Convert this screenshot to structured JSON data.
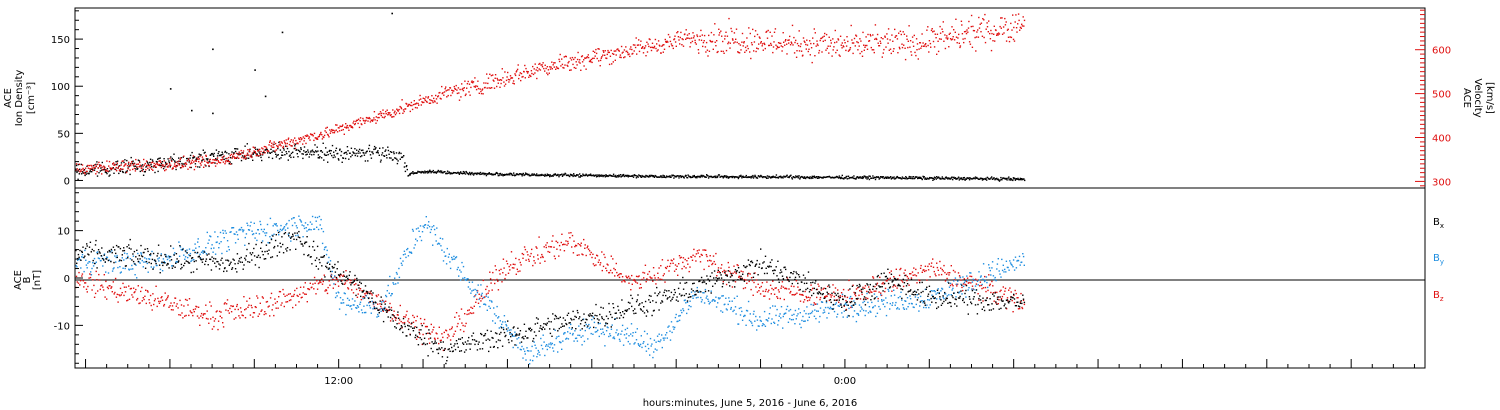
{
  "chart_data": [
    {
      "type": "scatter",
      "ylabel_left": [
        "ACE",
        "Ion Density",
        "[cm⁻³]"
      ],
      "ylabel_right": [
        "ACE",
        "Velocity",
        "[km/s]"
      ],
      "x_range_hours": [
        -12.5,
        51.5
      ],
      "ylim_left": [
        -8,
        183
      ],
      "ylim_right": [
        285,
        695
      ],
      "left_ticks": [
        "0",
        "50",
        "100",
        "150"
      ],
      "left_tick_values": [
        0,
        50,
        100,
        150
      ],
      "right_ticks": [
        "300",
        "400",
        "500",
        "600"
      ],
      "right_tick_values": [
        300,
        400,
        500,
        600
      ],
      "series": [
        {
          "color": "#000000",
          "axis": "left",
          "trend_x": [
            -12.5,
            -8,
            -4,
            0,
            2,
            3,
            3.3,
            4,
            8,
            16,
            24,
            29,
            32.5
          ],
          "trend_y": [
            10,
            20,
            30,
            30,
            30,
            26,
            8,
            10,
            7,
            5,
            4,
            3,
            2
          ],
          "outliers": [
            [
              -6,
              140
            ],
            [
              -4,
              118
            ],
            [
              -8,
              98
            ],
            [
              -3.5,
              90
            ],
            [
              -7,
              75
            ],
            [
              -6,
              72
            ],
            [
              -2.7,
              158
            ],
            [
              -1,
              25
            ],
            [
              2.5,
              178
            ]
          ]
        },
        {
          "color": "#e01010",
          "axis": "right",
          "trend_x": [
            -12.5,
            -6,
            0,
            5,
            10,
            17,
            24,
            28,
            32.5
          ],
          "trend_y": [
            330,
            345,
            420,
            500,
            565,
            630,
            610,
            620,
            660
          ]
        }
      ]
    },
    {
      "type": "scatter",
      "ylabel": [
        "ACE",
        "B",
        "[nT]"
      ],
      "xlabel": "hours:minutes, June  5, 2016 - June  6, 2016",
      "x_range_hours": [
        -12.5,
        51.5
      ],
      "x_ticks": [
        "12:00",
        "0:00"
      ],
      "x_tick_hours": [
        0,
        24
      ],
      "ylim": [
        -19,
        19
      ],
      "y_ticks": [
        "-10",
        "0",
        "10"
      ],
      "y_tick_values": [
        -10,
        0,
        10
      ],
      "legend": [
        "B",
        "B",
        "B"
      ],
      "legend_subscripts": [
        "x",
        "y",
        "z"
      ],
      "series": [
        {
          "color": "#000000",
          "trend_x": [
            -12.5,
            -10,
            -8,
            -5,
            -2,
            -1,
            1,
            3,
            5,
            8,
            10,
            15,
            20,
            24,
            26,
            28,
            32.5
          ],
          "trend_y": [
            5,
            5,
            4,
            3,
            9,
            4,
            -2,
            -10,
            -15,
            -12,
            -10,
            -5,
            3,
            -5,
            0,
            -4,
            -5
          ]
        },
        {
          "color": "#1f8ee0",
          "trend_x": [
            -12.5,
            -9,
            -5,
            -1,
            0,
            2,
            4,
            6,
            9,
            12,
            15,
            17,
            20,
            24,
            28,
            32.5
          ],
          "trend_y": [
            4,
            3,
            9,
            12,
            -5,
            -6,
            12,
            0,
            -16,
            -10,
            -14,
            -3,
            -9,
            -6,
            -4,
            4
          ]
        },
        {
          "color": "#e01010",
          "trend_x": [
            -12.5,
            -10,
            -6,
            -3,
            0,
            3,
            5,
            8,
            11,
            14,
            17,
            20,
            24,
            28,
            32.5
          ],
          "trend_y": [
            0,
            -3,
            -8,
            -5,
            0,
            -8,
            -13,
            3,
            8,
            -1,
            5,
            -2,
            -4,
            2,
            -5
          ]
        }
      ]
    }
  ]
}
